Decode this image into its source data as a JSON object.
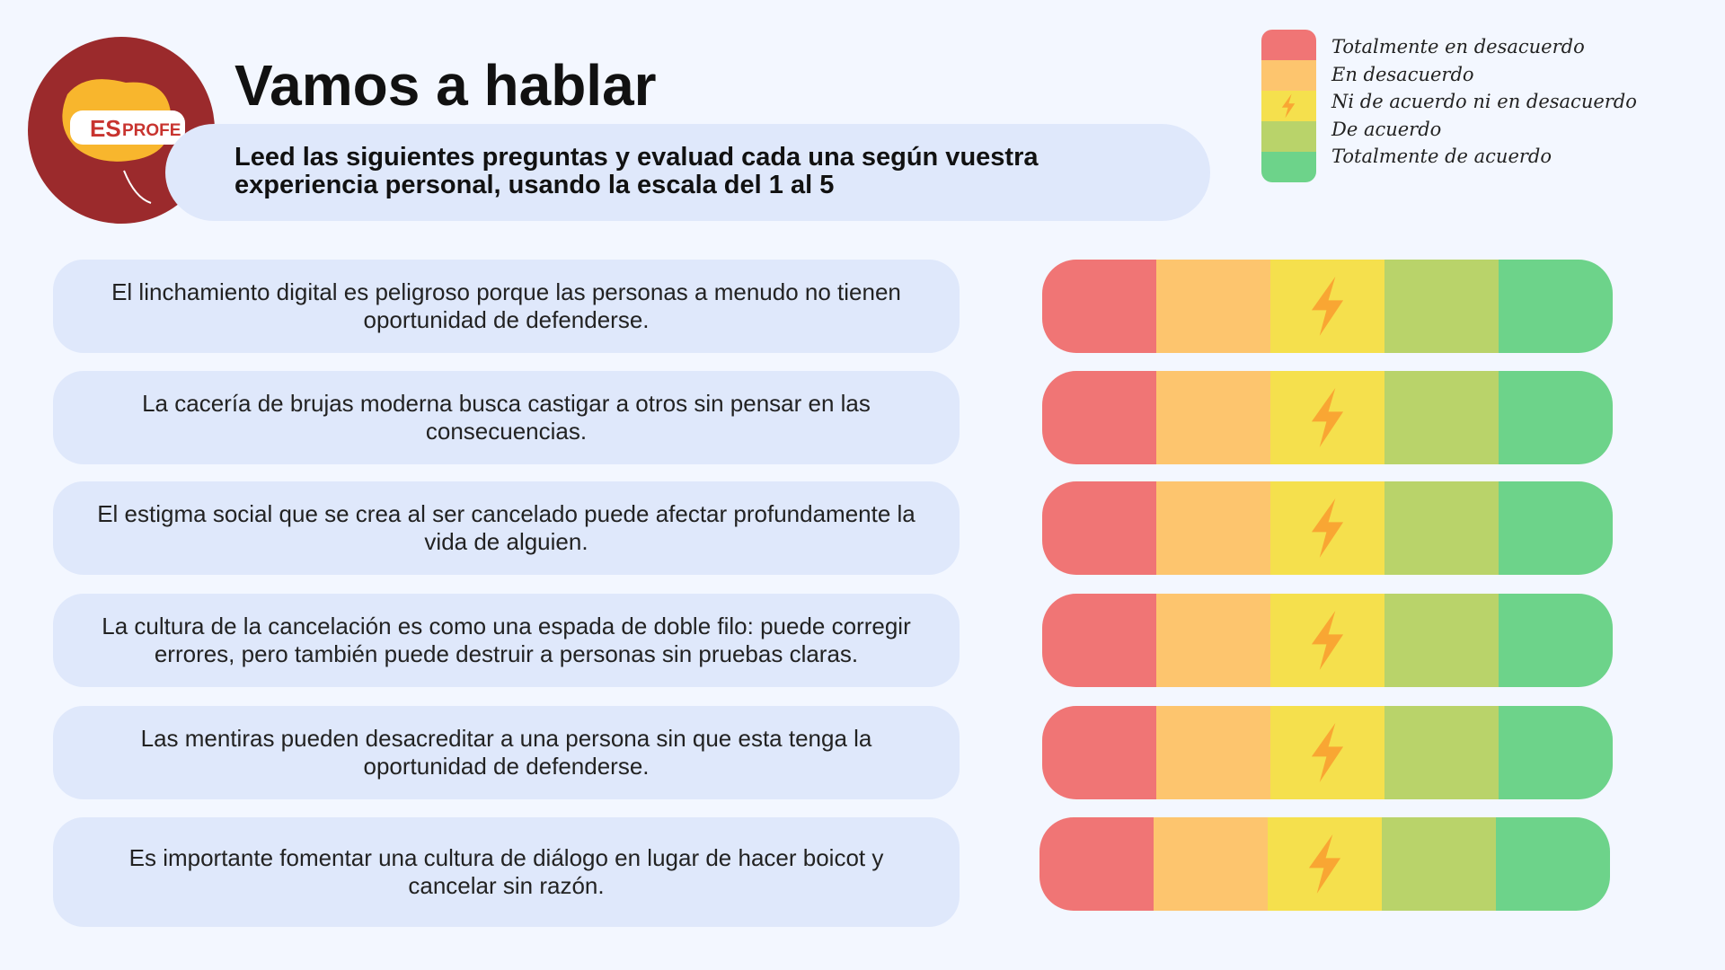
{
  "logo": {
    "left": "ES",
    "right": "PROFE"
  },
  "header": {
    "title": "Vamos a hablar",
    "subtitle": "Leed las siguientes preguntas y evaluad cada una según vuestra experiencia personal, usando la escala del 1 al 5"
  },
  "legend": {
    "items": [
      "Totalmente en desacuerdo",
      "En desacuerdo",
      "Ni de acuerdo ni en desacuerdo",
      "De acuerdo",
      "Totalmente de acuerdo"
    ]
  },
  "statements": [
    "El linchamiento digital es peligroso porque las personas a menudo no tienen oportunidad de defenderse.",
    "La cacería de brujas moderna busca castigar a otros sin pensar en las consecuencias.",
    "El estigma social que se crea al ser cancelado puede afectar profundamente la vida de alguien.",
    "La cultura de la cancelación es como una espada de doble filo: puede corregir errores, pero también puede destruir a personas sin pruebas claras.",
    "Las mentiras pueden desacreditar a una persona sin que esta tenga la oportunidad de defenderse.",
    "Es importante fomentar una cultura de diálogo en lugar de hacer boicot y cancelar sin razón."
  ]
}
